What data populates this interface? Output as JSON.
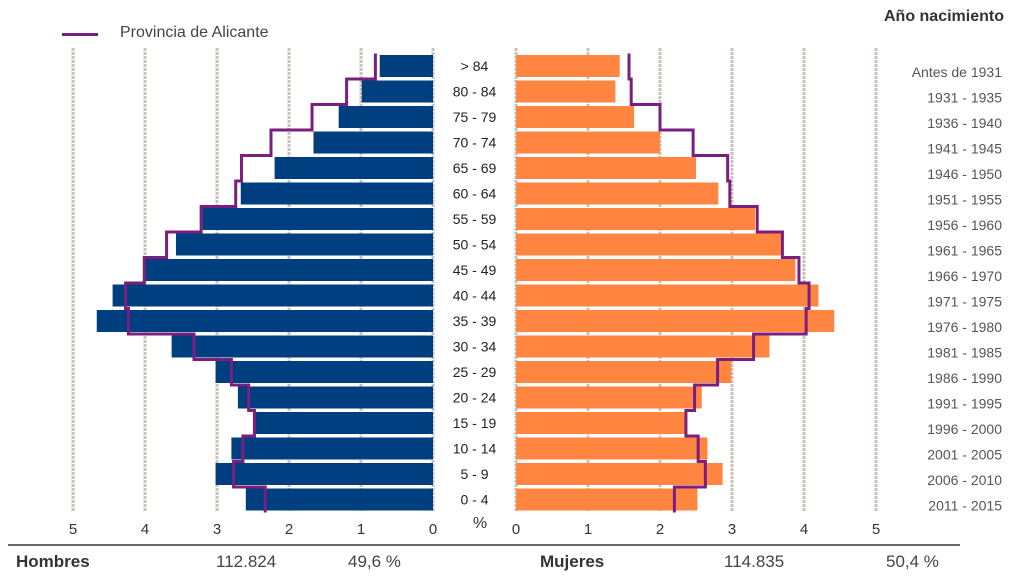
{
  "chart_data": {
    "type": "bar",
    "subtype": "population-pyramid",
    "legend": {
      "line_label": "Provincia de Alicante",
      "line_color": "#7b1f7e"
    },
    "birth_year_title": "Año nacimiento",
    "unit_label": "%",
    "categories": [
      ">  84",
      "80 - 84",
      "75 - 79",
      "70 - 74",
      "65 - 69",
      "60 - 64",
      "55 - 59",
      "50 - 54",
      "45 - 49",
      "40 - 44",
      "35 - 39",
      "30 - 34",
      "25 - 29",
      "20 - 24",
      "15 - 19",
      "10 - 14",
      "5 - 9",
      "0 - 4"
    ],
    "birth_years": [
      "Antes de 1931",
      "1931 - 1935",
      "1936 - 1940",
      "1941 - 1945",
      "1946 - 1950",
      "1951 - 1955",
      "1956 - 1960",
      "1961 - 1965",
      "1966 - 1970",
      "1971 - 1975",
      "1976 - 1980",
      "1981 - 1985",
      "1986 - 1990",
      "1991 - 1995",
      "1996 - 2000",
      "2001 - 2005",
      "2006 - 2010",
      "2011 - 2015"
    ],
    "series": [
      {
        "name": "Hombres",
        "color": "#003f7f",
        "values": [
          0.74,
          0.99,
          1.31,
          1.66,
          2.2,
          2.67,
          3.2,
          3.57,
          4.01,
          4.45,
          4.67,
          3.63,
          3.02,
          2.71,
          2.47,
          2.8,
          3.02,
          2.6
        ]
      },
      {
        "name": "Mujeres",
        "color": "#ff8540",
        "values": [
          1.44,
          1.38,
          1.64,
          2.0,
          2.5,
          2.81,
          3.32,
          3.68,
          3.88,
          4.2,
          4.42,
          3.52,
          2.99,
          2.58,
          2.34,
          2.66,
          2.87,
          2.52
        ]
      },
      {
        "name": "Provincia de Alicante Hombres",
        "style": "line",
        "values": [
          0.8,
          1.2,
          1.68,
          2.25,
          2.66,
          2.74,
          3.22,
          3.7,
          4.01,
          4.27,
          4.23,
          3.32,
          2.8,
          2.56,
          2.48,
          2.64,
          2.77,
          2.33
        ]
      },
      {
        "name": "Provincia de Alicante Mujeres",
        "style": "line",
        "values": [
          1.57,
          1.6,
          2.0,
          2.46,
          2.94,
          2.97,
          3.35,
          3.7,
          3.93,
          4.07,
          4.03,
          3.3,
          2.8,
          2.48,
          2.36,
          2.53,
          2.63,
          2.2
        ]
      }
    ],
    "axis_left": {
      "ticks": [
        5,
        4,
        3,
        2,
        1,
        0
      ],
      "range": [
        0,
        5
      ]
    },
    "axis_right": {
      "ticks": [
        0,
        1,
        2,
        3,
        4,
        5
      ],
      "range": [
        0,
        5
      ]
    },
    "grid": true,
    "grid_color": "#c8c3ba"
  },
  "footer": {
    "male_label": "Hombres",
    "male_total": "112.824",
    "male_pct": "49,6 %",
    "female_label": "Mujeres",
    "female_total": "114.835",
    "female_pct": "50,4 %"
  }
}
